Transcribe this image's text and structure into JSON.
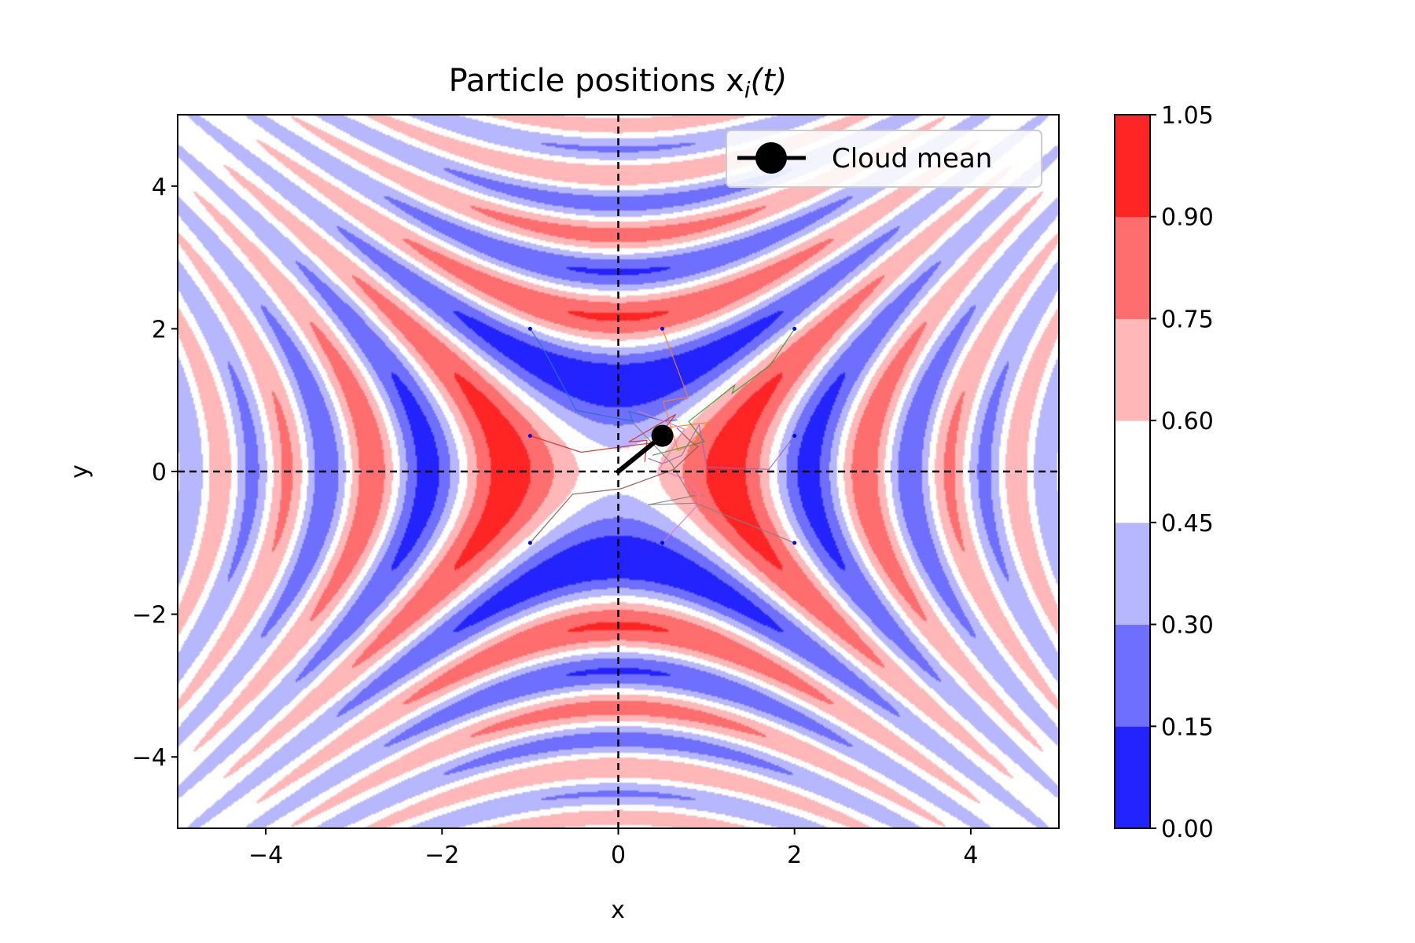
{
  "chart_data": {
    "type": "heatmap",
    "title": "Particle positions  x",
    "title_subscript": "i",
    "title_suffix": "(t)",
    "xlabel": "x",
    "ylabel": "y",
    "xlim": [
      -5,
      5
    ],
    "ylim": [
      -5,
      5
    ],
    "xticks": [
      -4,
      -2,
      0,
      2,
      4
    ],
    "yticks": [
      -4,
      -2,
      0,
      2,
      4
    ],
    "xtick_labels": [
      "−4",
      "−2",
      "0",
      "2",
      "4"
    ],
    "ytick_labels": [
      "−4",
      "−2",
      "0",
      "2",
      "4"
    ],
    "grid": false,
    "reference_lines": [
      {
        "orientation": "vertical",
        "value": 0,
        "style": "dashed",
        "color": "#000000"
      },
      {
        "orientation": "horizontal",
        "value": 0,
        "style": "dashed",
        "color": "#000000"
      }
    ],
    "colorbar": {
      "levels": [
        0.0,
        0.15,
        0.3,
        0.45,
        0.6,
        0.75,
        0.9,
        1.05
      ],
      "tick_labels": [
        "0.00",
        "0.15",
        "0.30",
        "0.45",
        "0.60",
        "0.75",
        "0.90",
        "1.05"
      ],
      "colors": [
        "#2323ff",
        "#6e6eff",
        "#b7b7ff",
        "#ffffff",
        "#ffb7b7",
        "#ff6e6e",
        "#ff2525"
      ]
    },
    "particles": {
      "start_positions": [
        [
          -1,
          2
        ],
        [
          0.5,
          2
        ],
        [
          2,
          2
        ],
        [
          -1,
          0.5
        ],
        [
          2,
          0.5
        ],
        [
          -1,
          -1
        ],
        [
          0.5,
          -1
        ],
        [
          2,
          -1
        ]
      ],
      "marker_color": "#0000ff",
      "trajectory_colors": [
        "#1f77b4",
        "#ff7f0e",
        "#2ca02c",
        "#d62728",
        "#9467bd",
        "#8c564b",
        "#e377c2",
        "#7f7f7f"
      ]
    },
    "series": [
      {
        "name": "Cloud mean",
        "x": [
          0,
          0.5
        ],
        "y": [
          0,
          0.5
        ],
        "color": "#000000",
        "marker": "circle"
      }
    ],
    "legend": {
      "placement": "top-right",
      "entries": [
        "Cloud mean"
      ]
    }
  }
}
